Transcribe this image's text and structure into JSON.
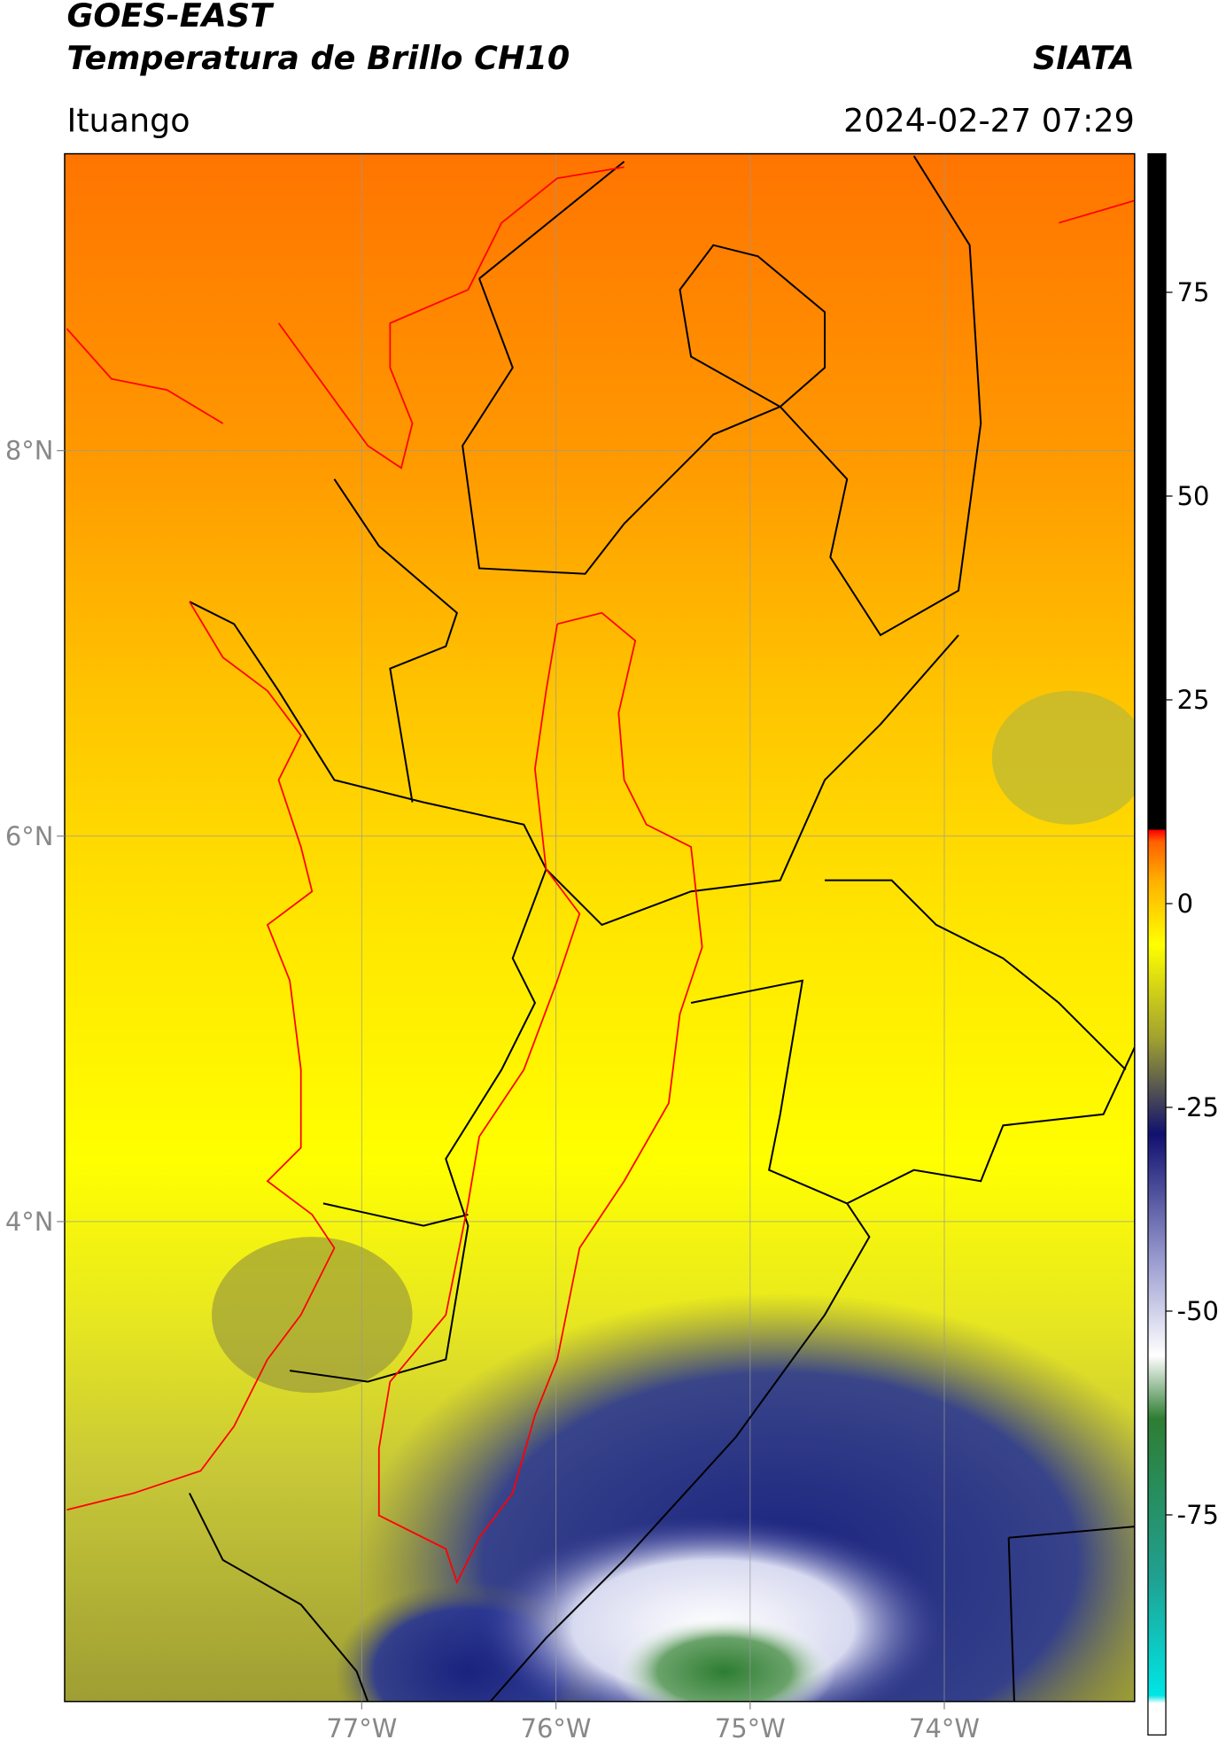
{
  "header": {
    "title": "GOES-EAST",
    "subtitle": "Temperatura de Brillo CH10",
    "source": "SIATA",
    "region": "Ituango",
    "timestamp": "2024-02-27 07:29"
  },
  "map": {
    "xlim": [
      -78.53,
      -73.02
    ],
    "ylim": [
      1.51,
      9.54
    ],
    "xticks": [
      {
        "value": -77,
        "label": "77°W"
      },
      {
        "value": -76,
        "label": "76°W"
      },
      {
        "value": -75,
        "label": "75°W"
      },
      {
        "value": -74,
        "label": "74°W"
      }
    ],
    "yticks": [
      {
        "value": 4,
        "label": "4°N"
      },
      {
        "value": 6,
        "label": "6°N"
      },
      {
        "value": 8,
        "label": "8°N"
      }
    ],
    "grid": true
  },
  "colorbar": {
    "lim": [
      -102,
      92
    ],
    "ticks": [
      -75,
      -50,
      -25,
      0,
      25,
      50,
      75
    ]
  }
}
